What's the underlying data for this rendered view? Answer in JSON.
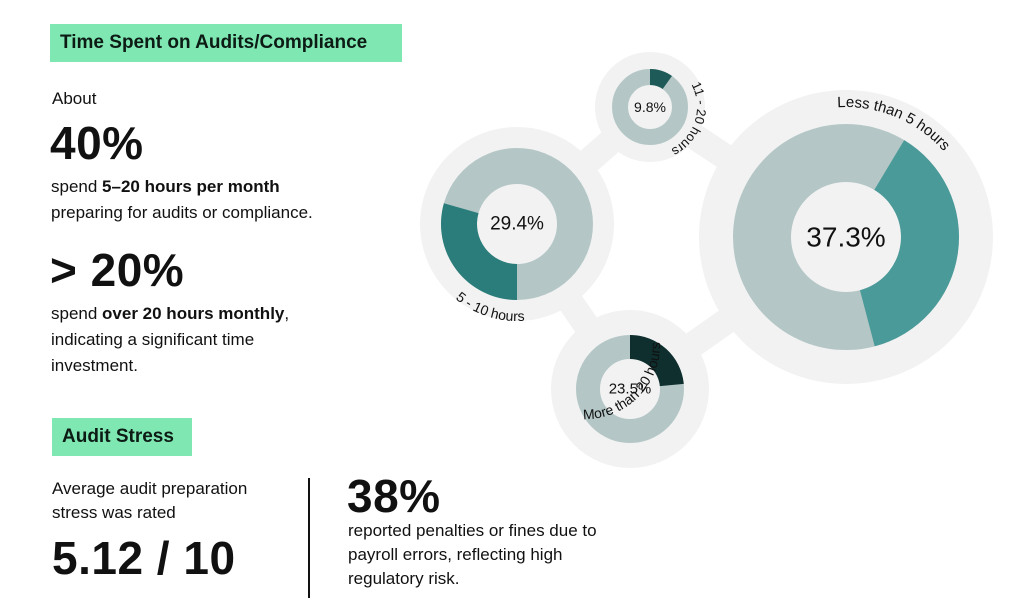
{
  "section1": {
    "badge": "Time Spent on Audits/Compliance",
    "about": "About",
    "stat1": "40%",
    "line1_pre": "spend ",
    "line1_bold": "5–20 hours per month",
    "line2": "preparing for audits or compliance.",
    "stat2": "> 20%",
    "line3_pre": "spend ",
    "line3_bold": "over 20 hours monthly",
    "line3_post": ",",
    "line4": "indicating a significant time",
    "line5": "investment."
  },
  "section2": {
    "badge": "Audit Stress",
    "line1": "Average audit preparation",
    "line2": "stress was rated",
    "score": "5.12 / 10",
    "stat": "38%",
    "desc1": "reported penalties or fines due to",
    "desc2": "payroll errors, reflecting high",
    "desc3": "regulatory risk."
  },
  "colors": {
    "badge": "#7fe8b2",
    "bubble": "#f2f2f2",
    "remainder": "#b4c7c6",
    "c_less5": "#4a9a99",
    "c_5to10": "#2b7d7b",
    "c_11to20": "#1e5a58",
    "c_over20": "#0e2f2e"
  },
  "chart_data": {
    "type": "pie",
    "series": [
      {
        "name": "Less than 5 hours",
        "value": 37.3,
        "label": "37.3%"
      },
      {
        "name": "5 - 10 hours",
        "value": 29.4,
        "label": "29.4%"
      },
      {
        "name": "11 - 20 hours",
        "value": 9.8,
        "label": "9.8%"
      },
      {
        "name": "More than 20 hours",
        "value": 23.5,
        "label": "23.5%"
      }
    ]
  }
}
